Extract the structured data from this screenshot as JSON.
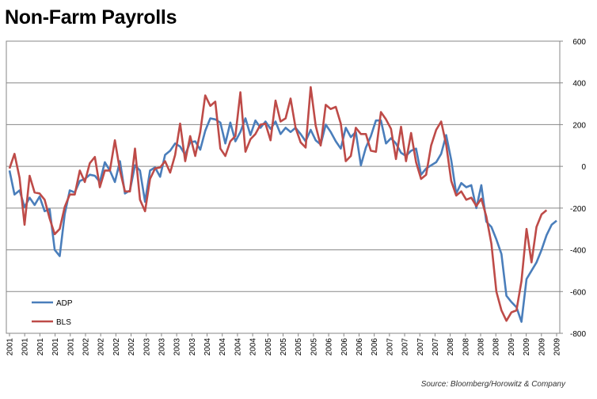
{
  "title": "Non-Farm Payrolls",
  "source": "Source: Bloomberg/Horowitz & Company",
  "chart_data": {
    "type": "line",
    "title": "Non-Farm Payrolls",
    "y_axis_side": "right",
    "ylim": [
      -800,
      600
    ],
    "yticks": [
      -800,
      -600,
      -400,
      -200,
      0,
      200,
      400,
      600
    ],
    "grid": "horizontal",
    "legend_placement": "lower-left",
    "colors": {
      "ADP": "#4a7ebb",
      "BLS": "#be4b48"
    },
    "x_start": "2001-01",
    "x_tick_labels": [
      "2001",
      "2001",
      "2001",
      "2001",
      "2001",
      "2002",
      "2002",
      "2002",
      "2002",
      "2003",
      "2003",
      "2003",
      "2003",
      "2004",
      "2004",
      "2004",
      "2004",
      "2005",
      "2005",
      "2005",
      "2005",
      "2006",
      "2006",
      "2006",
      "2006",
      "2007",
      "2007",
      "2007",
      "2007",
      "2008",
      "2008",
      "2008",
      "2008",
      "2009",
      "2009",
      "2009",
      "2009"
    ],
    "series": [
      {
        "name": "ADP",
        "values": [
          -20,
          -135,
          -115,
          -195,
          -150,
          -185,
          -145,
          -215,
          -205,
          -400,
          -430,
          -230,
          -115,
          -125,
          -70,
          -60,
          -40,
          -45,
          -75,
          20,
          -20,
          -75,
          25,
          -130,
          -115,
          5,
          -20,
          -170,
          -20,
          -5,
          -50,
          55,
          75,
          110,
          95,
          55,
          115,
          120,
          80,
          170,
          230,
          225,
          210,
          110,
          210,
          120,
          165,
          230,
          150,
          220,
          185,
          215,
          180,
          215,
          155,
          185,
          165,
          185,
          155,
          120,
          175,
          125,
          105,
          200,
          165,
          120,
          85,
          185,
          140,
          165,
          5,
          90,
          145,
          220,
          220,
          110,
          135,
          110,
          65,
          50,
          75,
          85,
          -40,
          -10,
          5,
          20,
          60,
          150,
          30,
          -130,
          -80,
          -100,
          -90,
          -200,
          -90,
          -265,
          -290,
          -350,
          -420,
          -620,
          -650,
          -675,
          -745,
          -540,
          -500,
          -460,
          -400,
          -330,
          -280,
          -260
        ]
      },
      {
        "name": "BLS",
        "values": [
          -10,
          60,
          -55,
          -280,
          -45,
          -125,
          -130,
          -160,
          -250,
          -325,
          -300,
          -195,
          -135,
          -135,
          -20,
          -75,
          15,
          45,
          -100,
          -20,
          -20,
          125,
          -20,
          -120,
          -120,
          85,
          -160,
          -215,
          -60,
          -10,
          -5,
          25,
          -30,
          55,
          205,
          25,
          145,
          50,
          165,
          340,
          290,
          310,
          85,
          50,
          120,
          145,
          355,
          70,
          130,
          155,
          200,
          205,
          125,
          315,
          215,
          230,
          325,
          185,
          115,
          90,
          380,
          195,
          100,
          295,
          275,
          285,
          205,
          25,
          50,
          185,
          155,
          155,
          75,
          70,
          260,
          225,
          180,
          35,
          190,
          25,
          160,
          20,
          -60,
          -40,
          100,
          175,
          215,
          105,
          -70,
          -140,
          -120,
          -160,
          -150,
          -190,
          -155,
          -240,
          -370,
          -600,
          -690,
          -740,
          -700,
          -690,
          -550,
          -300,
          -460,
          -290,
          -230,
          -210
        ]
      }
    ]
  }
}
